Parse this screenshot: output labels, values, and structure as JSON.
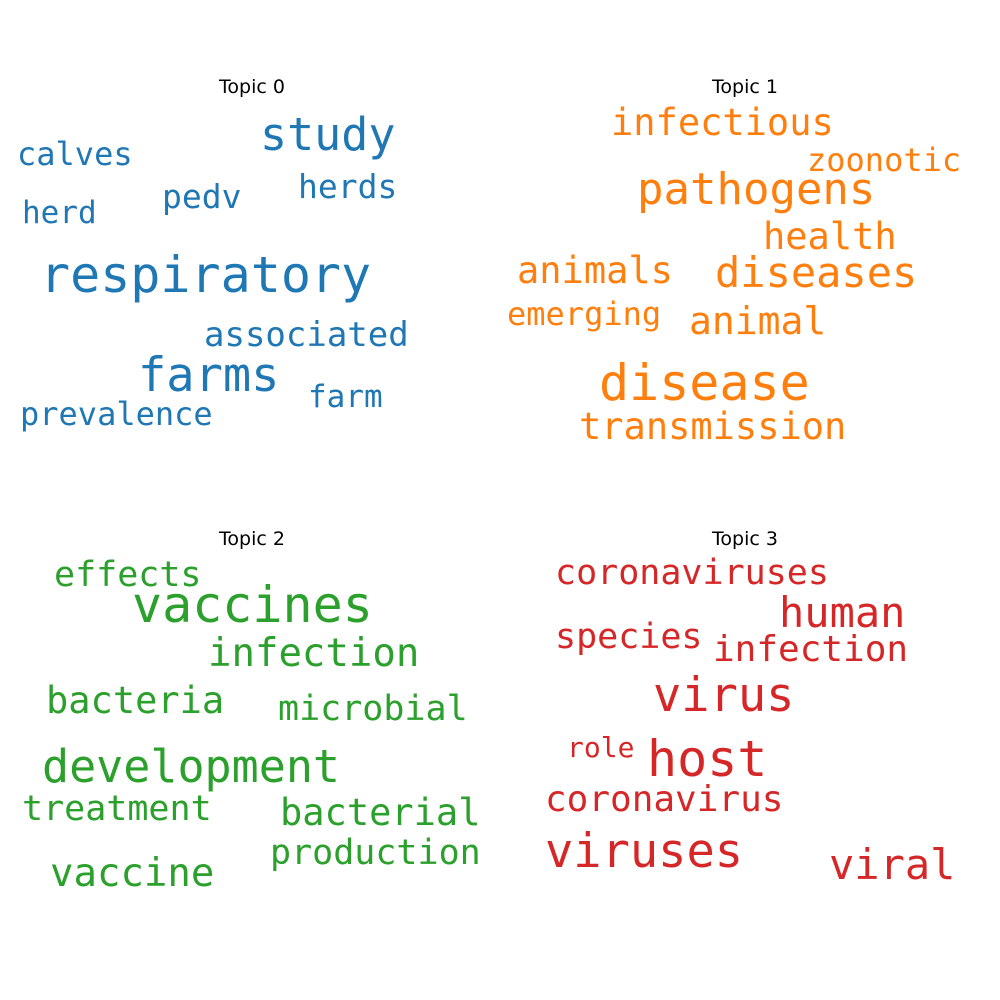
{
  "chart_data": [
    {
      "type": "wordcloud",
      "title": "Topic 0",
      "color": "#1f77b4",
      "words": [
        {
          "text": "respiratory",
          "weight": 1.0
        },
        {
          "text": "farms",
          "weight": 0.93
        },
        {
          "text": "study",
          "weight": 0.9
        },
        {
          "text": "associated",
          "weight": 0.68
        },
        {
          "text": "pedv",
          "weight": 0.66
        },
        {
          "text": "herds",
          "weight": 0.66
        },
        {
          "text": "calves",
          "weight": 0.64
        },
        {
          "text": "prevalence",
          "weight": 0.63
        },
        {
          "text": "farm",
          "weight": 0.62
        },
        {
          "text": "herd",
          "weight": 0.62
        }
      ]
    },
    {
      "type": "wordcloud",
      "title": "Topic 1",
      "color": "#ff7f0e",
      "words": [
        {
          "text": "disease",
          "weight": 1.0
        },
        {
          "text": "pathogens",
          "weight": 0.88
        },
        {
          "text": "diseases",
          "weight": 0.84
        },
        {
          "text": "animal",
          "weight": 0.76
        },
        {
          "text": "transmission",
          "weight": 0.74
        },
        {
          "text": "infectious",
          "weight": 0.74
        },
        {
          "text": "health",
          "weight": 0.74
        },
        {
          "text": "animals",
          "weight": 0.74
        },
        {
          "text": "emerging",
          "weight": 0.64
        },
        {
          "text": "zoonotic",
          "weight": 0.64
        }
      ]
    },
    {
      "type": "wordcloud",
      "title": "Topic 2",
      "color": "#2ca02c",
      "words": [
        {
          "text": "vaccines",
          "weight": 1.0
        },
        {
          "text": "development",
          "weight": 0.89
        },
        {
          "text": "infection",
          "weight": 0.78
        },
        {
          "text": "vaccine",
          "weight": 0.78
        },
        {
          "text": "bacteria",
          "weight": 0.74
        },
        {
          "text": "bacterial",
          "weight": 0.74
        },
        {
          "text": "effects",
          "weight": 0.7
        },
        {
          "text": "microbial",
          "weight": 0.7
        },
        {
          "text": "treatment",
          "weight": 0.7
        },
        {
          "text": "production",
          "weight": 0.7
        }
      ]
    },
    {
      "type": "wordcloud",
      "title": "Topic 3",
      "color": "#d62728",
      "words": [
        {
          "text": "host",
          "weight": 1.0
        },
        {
          "text": "virus",
          "weight": 0.94
        },
        {
          "text": "viruses",
          "weight": 0.94
        },
        {
          "text": "human",
          "weight": 0.84
        },
        {
          "text": "viral",
          "weight": 0.84
        },
        {
          "text": "infection",
          "weight": 0.72
        },
        {
          "text": "coronavirus",
          "weight": 0.72
        },
        {
          "text": "coronaviruses",
          "weight": 0.7
        },
        {
          "text": "species",
          "weight": 0.7
        },
        {
          "text": "role",
          "weight": 0.56
        }
      ]
    }
  ]
}
